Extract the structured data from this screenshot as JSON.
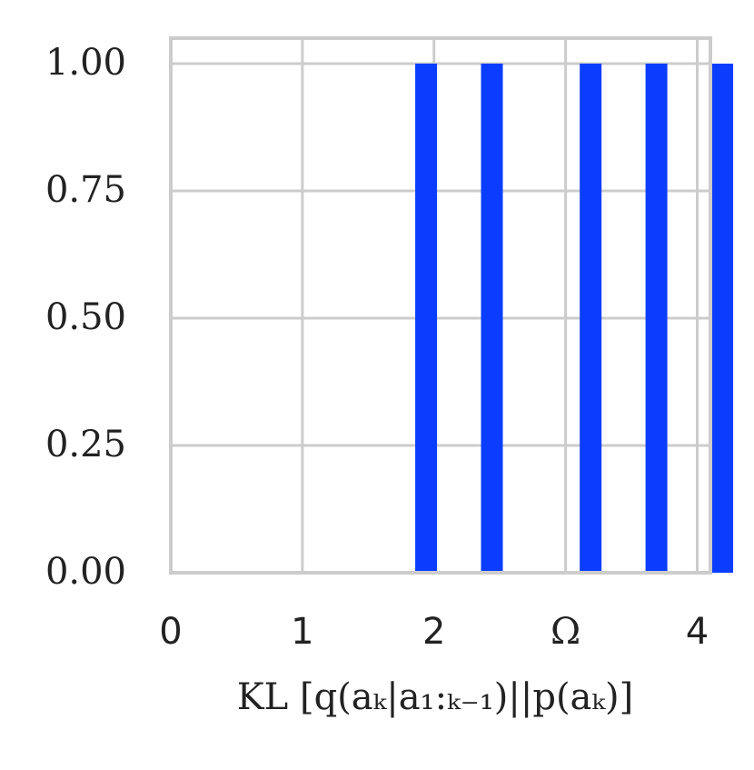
{
  "chart_data": {
    "type": "bar",
    "x": [
      1.94,
      2.44,
      3.19,
      3.69,
      4.19
    ],
    "values": [
      1.0,
      1.0,
      1.0,
      1.0,
      1.0
    ],
    "xlim": [
      0,
      4.1
    ],
    "ylim": [
      0,
      1.05
    ],
    "xticks": [
      {
        "value": 0,
        "label": "0"
      },
      {
        "value": 1,
        "label": "1"
      },
      {
        "value": 2,
        "label": "2"
      },
      {
        "value": 3,
        "label": "Ω"
      },
      {
        "value": 4,
        "label": "4"
      }
    ],
    "yticks": [
      {
        "value": 0.0,
        "label": "0.00"
      },
      {
        "value": 0.25,
        "label": "0.25"
      },
      {
        "value": 0.5,
        "label": "0.50"
      },
      {
        "value": 0.75,
        "label": "0.75"
      },
      {
        "value": 1.0,
        "label": "1.00"
      }
    ],
    "title": "",
    "xlabel": "KL [q(aₖ|a₁:ₖ₋₁)||p(aₖ)]",
    "ylabel": "",
    "grid": true,
    "colors": {
      "bar": "#0a3dff",
      "grid": "#cccccc",
      "frame": "#cccccc",
      "text": "#222222"
    }
  }
}
